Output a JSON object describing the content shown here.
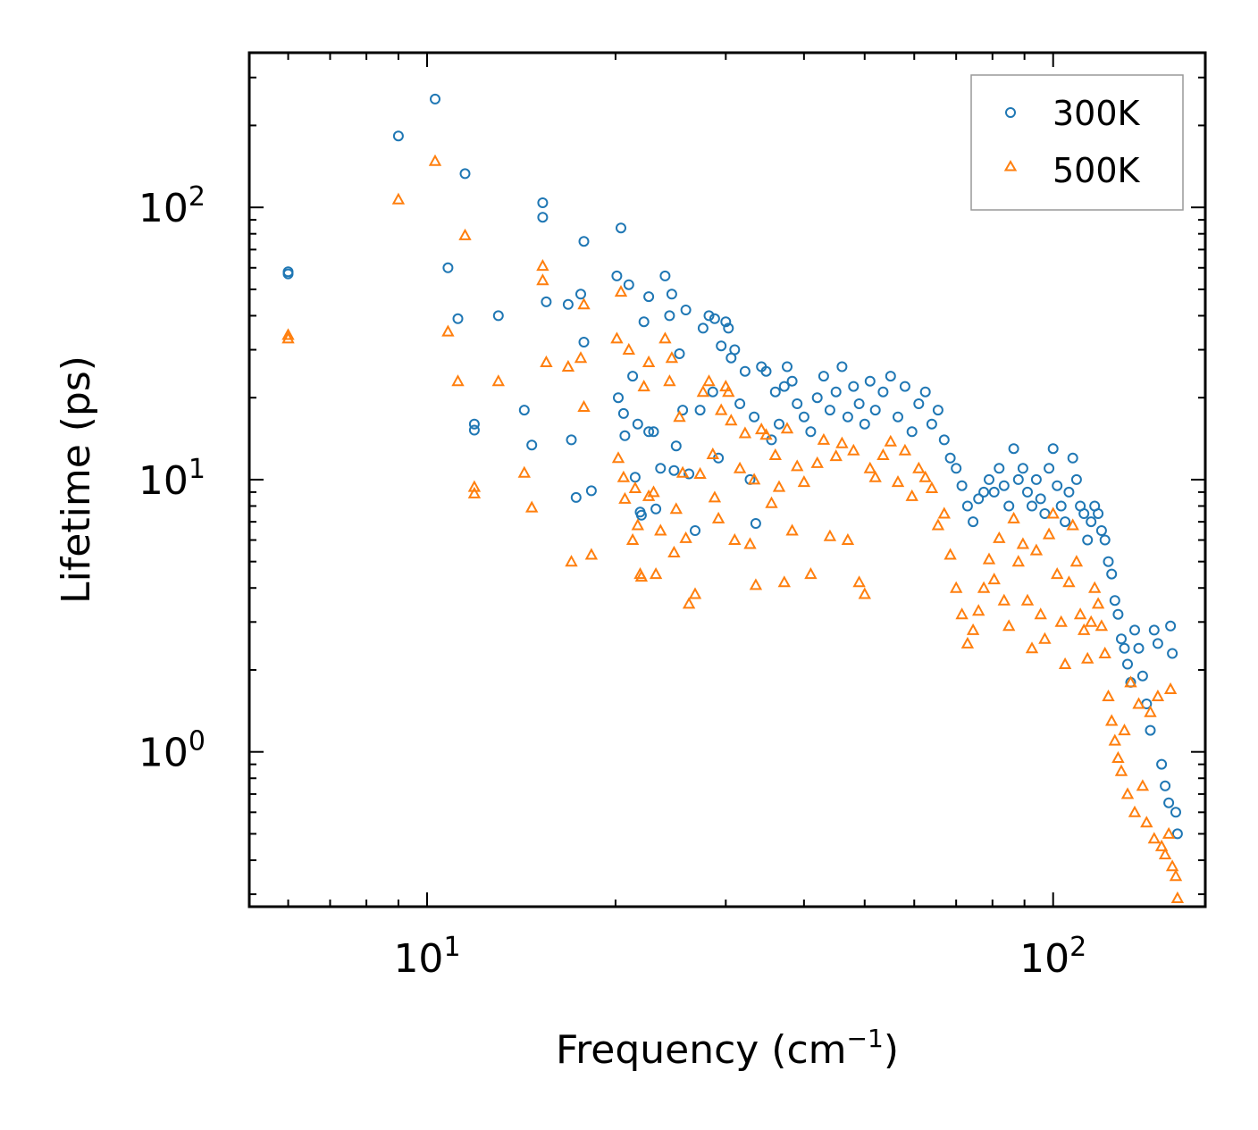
{
  "chart_data": {
    "type": "scatter",
    "xscale": "log",
    "yscale": "log",
    "xlim": [
      5.2,
      175
    ],
    "ylim": [
      0.27,
      370
    ],
    "xlabel": {
      "base": "Frequency (cm",
      "exponent": "−1",
      "suffix": ")"
    },
    "ylabel": "Lifetime (ps)",
    "xticks": [
      {
        "base": "10",
        "exp": "1",
        "value": 10
      },
      {
        "base": "10",
        "exp": "2",
        "value": 100
      }
    ],
    "yticks": [
      {
        "base": "10",
        "exp": "0",
        "value": 1
      },
      {
        "base": "10",
        "exp": "1",
        "value": 10
      },
      {
        "base": "10",
        "exp": "2",
        "value": 100
      }
    ],
    "grid": false,
    "legend_position": "upper right",
    "series": [
      {
        "name": "300K",
        "marker": "circle",
        "color": "#1f77b4",
        "points": [
          [
            6.0,
            58
          ],
          [
            6.0,
            57
          ],
          [
            9.0,
            183
          ],
          [
            10.3,
            250
          ],
          [
            10.8,
            60
          ],
          [
            11.2,
            39
          ],
          [
            11.5,
            133
          ],
          [
            11.9,
            16
          ],
          [
            11.9,
            15.2
          ],
          [
            13.0,
            40
          ],
          [
            14.3,
            18
          ],
          [
            14.7,
            13.4
          ],
          [
            15.3,
            104
          ],
          [
            15.3,
            92
          ],
          [
            15.5,
            45
          ],
          [
            16.8,
            44
          ],
          [
            17.0,
            14
          ],
          [
            17.3,
            8.6
          ],
          [
            17.6,
            48
          ],
          [
            17.8,
            75
          ],
          [
            17.8,
            32
          ],
          [
            18.3,
            9.1
          ],
          [
            20.1,
            56
          ],
          [
            20.2,
            20
          ],
          [
            20.4,
            84
          ],
          [
            20.6,
            17.5
          ],
          [
            20.7,
            14.5
          ],
          [
            21.0,
            52
          ],
          [
            21.3,
            24
          ],
          [
            21.5,
            10.2
          ],
          [
            21.7,
            16
          ],
          [
            21.9,
            7.6
          ],
          [
            22.0,
            7.4
          ],
          [
            22.2,
            38
          ],
          [
            22.6,
            47
          ],
          [
            22.6,
            15
          ],
          [
            23.0,
            15
          ],
          [
            23.2,
            7.8
          ],
          [
            23.6,
            11
          ],
          [
            24.0,
            56
          ],
          [
            24.4,
            40
          ],
          [
            24.6,
            48
          ],
          [
            24.8,
            10.8
          ],
          [
            25.0,
            13.3
          ],
          [
            25.3,
            29
          ],
          [
            25.6,
            18
          ],
          [
            25.9,
            42
          ],
          [
            26.2,
            10.5
          ],
          [
            26.8,
            6.5
          ],
          [
            27.3,
            18
          ],
          [
            27.6,
            36
          ],
          [
            28.2,
            40
          ],
          [
            28.6,
            21
          ],
          [
            28.8,
            39
          ],
          [
            29.2,
            12
          ],
          [
            29.5,
            31
          ],
          [
            30.0,
            38
          ],
          [
            30.3,
            36
          ],
          [
            30.6,
            28
          ],
          [
            31.0,
            30
          ],
          [
            31.6,
            19
          ],
          [
            32.2,
            25
          ],
          [
            32.8,
            10
          ],
          [
            33.3,
            17
          ],
          [
            33.5,
            6.9
          ],
          [
            34.2,
            26
          ],
          [
            34.8,
            25
          ],
          [
            35.5,
            14
          ],
          [
            36.0,
            21
          ],
          [
            36.5,
            16
          ],
          [
            37.2,
            22
          ],
          [
            37.6,
            26
          ],
          [
            38.3,
            23
          ],
          [
            39.0,
            19
          ],
          [
            40.0,
            17
          ],
          [
            41.0,
            15
          ],
          [
            42.0,
            20
          ],
          [
            43.0,
            24
          ],
          [
            44.0,
            18
          ],
          [
            45.0,
            21
          ],
          [
            46.0,
            26
          ],
          [
            47.0,
            17
          ],
          [
            48.0,
            22
          ],
          [
            49.0,
            19
          ],
          [
            50.0,
            16
          ],
          [
            51.0,
            23
          ],
          [
            52.0,
            18
          ],
          [
            53.5,
            21
          ],
          [
            55.0,
            24
          ],
          [
            56.5,
            17
          ],
          [
            58.0,
            22
          ],
          [
            59.5,
            15
          ],
          [
            61.0,
            19
          ],
          [
            62.5,
            21
          ],
          [
            64.0,
            16
          ],
          [
            65.5,
            18
          ],
          [
            67.0,
            14
          ],
          [
            68.5,
            12
          ],
          [
            70.0,
            11
          ],
          [
            71.5,
            9.5
          ],
          [
            73.0,
            8
          ],
          [
            74.5,
            7
          ],
          [
            76.0,
            8.5
          ],
          [
            77.5,
            9
          ],
          [
            79.0,
            10
          ],
          [
            80.5,
            9
          ],
          [
            82.0,
            11
          ],
          [
            83.5,
            9.5
          ],
          [
            85.0,
            8
          ],
          [
            86.5,
            13
          ],
          [
            88.0,
            10
          ],
          [
            89.5,
            11
          ],
          [
            91.0,
            9
          ],
          [
            92.5,
            8
          ],
          [
            94.0,
            10
          ],
          [
            95.5,
            8.5
          ],
          [
            97.0,
            7.5
          ],
          [
            98.5,
            11
          ],
          [
            100.0,
            13
          ],
          [
            101.5,
            9.5
          ],
          [
            103.0,
            8
          ],
          [
            104.5,
            7
          ],
          [
            106.0,
            9
          ],
          [
            107.5,
            12
          ],
          [
            109.0,
            10
          ],
          [
            110.5,
            8
          ],
          [
            112.0,
            7.5
          ],
          [
            113.5,
            6
          ],
          [
            115.0,
            7
          ],
          [
            116.5,
            8
          ],
          [
            118.0,
            7.5
          ],
          [
            119.5,
            6.5
          ],
          [
            121.0,
            6
          ],
          [
            122.5,
            5
          ],
          [
            124.0,
            4.5
          ],
          [
            125.5,
            3.6
          ],
          [
            127.0,
            3.2
          ],
          [
            128.5,
            2.6
          ],
          [
            130.0,
            2.4
          ],
          [
            131.5,
            2.1
          ],
          [
            133.0,
            1.8
          ],
          [
            135.0,
            2.8
          ],
          [
            137.0,
            2.4
          ],
          [
            139.0,
            1.9
          ],
          [
            141.0,
            1.5
          ],
          [
            143.0,
            1.2
          ],
          [
            145.0,
            2.8
          ],
          [
            147.0,
            2.5
          ],
          [
            149.0,
            0.9
          ],
          [
            151.0,
            0.75
          ],
          [
            153.0,
            0.65
          ],
          [
            154.0,
            2.9
          ],
          [
            155.0,
            2.3
          ],
          [
            157.0,
            0.6
          ],
          [
            158.0,
            0.5
          ]
        ]
      },
      {
        "name": "500K",
        "marker": "triangle",
        "color": "#ff7f0e",
        "points": [
          [
            6.0,
            34
          ],
          [
            6.0,
            33
          ],
          [
            9.0,
            107
          ],
          [
            10.3,
            148
          ],
          [
            10.8,
            35
          ],
          [
            11.2,
            23
          ],
          [
            11.5,
            79
          ],
          [
            11.9,
            9.4
          ],
          [
            11.9,
            8.9
          ],
          [
            13.0,
            23
          ],
          [
            14.3,
            10.6
          ],
          [
            14.7,
            7.9
          ],
          [
            15.3,
            61
          ],
          [
            15.3,
            54
          ],
          [
            15.5,
            27
          ],
          [
            16.8,
            26
          ],
          [
            17.0,
            5.0
          ],
          [
            17.6,
            28
          ],
          [
            17.8,
            44
          ],
          [
            17.8,
            18.5
          ],
          [
            18.3,
            5.3
          ],
          [
            20.1,
            33
          ],
          [
            20.2,
            12
          ],
          [
            20.4,
            49
          ],
          [
            20.6,
            10.2
          ],
          [
            20.7,
            8.5
          ],
          [
            21.0,
            30
          ],
          [
            21.3,
            6.0
          ],
          [
            21.5,
            9.3
          ],
          [
            21.7,
            6.8
          ],
          [
            21.9,
            4.5
          ],
          [
            22.0,
            4.4
          ],
          [
            22.2,
            22
          ],
          [
            22.6,
            27
          ],
          [
            22.6,
            8.7
          ],
          [
            23.0,
            9.0
          ],
          [
            23.2,
            4.5
          ],
          [
            23.6,
            6.5
          ],
          [
            24.0,
            33
          ],
          [
            24.4,
            23
          ],
          [
            24.6,
            28
          ],
          [
            24.8,
            5.4
          ],
          [
            25.0,
            7.8
          ],
          [
            25.3,
            17
          ],
          [
            25.6,
            10.6
          ],
          [
            25.9,
            6.1
          ],
          [
            26.2,
            3.5
          ],
          [
            26.8,
            3.8
          ],
          [
            27.3,
            10.5
          ],
          [
            27.6,
            21
          ],
          [
            28.2,
            23
          ],
          [
            28.6,
            12.4
          ],
          [
            28.8,
            8.6
          ],
          [
            29.2,
            7.2
          ],
          [
            29.5,
            18
          ],
          [
            30.0,
            22
          ],
          [
            30.3,
            21
          ],
          [
            30.6,
            16.5
          ],
          [
            31.0,
            6.0
          ],
          [
            31.6,
            11
          ],
          [
            32.2,
            14.8
          ],
          [
            32.8,
            5.8
          ],
          [
            33.3,
            10
          ],
          [
            33.5,
            4.1
          ],
          [
            34.2,
            15.3
          ],
          [
            34.8,
            14.6
          ],
          [
            35.5,
            8.2
          ],
          [
            36.0,
            12.3
          ],
          [
            36.5,
            9.4
          ],
          [
            37.2,
            4.2
          ],
          [
            37.6,
            15.4
          ],
          [
            38.3,
            6.5
          ],
          [
            39.0,
            11.2
          ],
          [
            40.0,
            9.8
          ],
          [
            41.0,
            4.5
          ],
          [
            42.0,
            11.5
          ],
          [
            43.0,
            14
          ],
          [
            44.0,
            6.2
          ],
          [
            45.0,
            12.2
          ],
          [
            46.0,
            13.6
          ],
          [
            47.0,
            6.0
          ],
          [
            48.0,
            12.8
          ],
          [
            49.0,
            4.2
          ],
          [
            50.0,
            3.8
          ],
          [
            51.0,
            11
          ],
          [
            52.0,
            10.2
          ],
          [
            53.5,
            12.3
          ],
          [
            55.0,
            13.8
          ],
          [
            56.5,
            9.8
          ],
          [
            58.0,
            12.8
          ],
          [
            59.5,
            8.7
          ],
          [
            61.0,
            11
          ],
          [
            62.5,
            10.2
          ],
          [
            64.0,
            9.3
          ],
          [
            65.5,
            6.8
          ],
          [
            67.0,
            7.5
          ],
          [
            68.5,
            5.3
          ],
          [
            70.0,
            4.0
          ],
          [
            71.5,
            3.2
          ],
          [
            73.0,
            2.5
          ],
          [
            74.5,
            2.8
          ],
          [
            76.0,
            3.3
          ],
          [
            77.5,
            4.0
          ],
          [
            79.0,
            5.1
          ],
          [
            80.5,
            4.3
          ],
          [
            82.0,
            6.1
          ],
          [
            83.5,
            3.6
          ],
          [
            85.0,
            2.9
          ],
          [
            86.5,
            7.2
          ],
          [
            88.0,
            5.0
          ],
          [
            89.5,
            5.8
          ],
          [
            91.0,
            3.6
          ],
          [
            92.5,
            2.4
          ],
          [
            94.0,
            5.5
          ],
          [
            95.5,
            3.2
          ],
          [
            97.0,
            2.6
          ],
          [
            98.5,
            6.3
          ],
          [
            100.0,
            7.5
          ],
          [
            101.5,
            4.5
          ],
          [
            103.0,
            3.0
          ],
          [
            104.5,
            2.1
          ],
          [
            106.0,
            4.2
          ],
          [
            107.5,
            6.8
          ],
          [
            109.0,
            5.0
          ],
          [
            110.5,
            3.2
          ],
          [
            112.0,
            2.8
          ],
          [
            113.5,
            2.2
          ],
          [
            115.0,
            3.0
          ],
          [
            116.5,
            4.0
          ],
          [
            118.0,
            3.5
          ],
          [
            119.5,
            2.9
          ],
          [
            121.0,
            2.3
          ],
          [
            122.5,
            1.6
          ],
          [
            124.0,
            1.3
          ],
          [
            125.5,
            1.1
          ],
          [
            127.0,
            0.95
          ],
          [
            128.5,
            0.85
          ],
          [
            130.0,
            1.2
          ],
          [
            131.5,
            0.7
          ],
          [
            133.0,
            1.8
          ],
          [
            135.0,
            0.6
          ],
          [
            137.0,
            1.5
          ],
          [
            139.0,
            0.75
          ],
          [
            141.0,
            0.55
          ],
          [
            143.0,
            1.4
          ],
          [
            145.0,
            0.48
          ],
          [
            147.0,
            1.6
          ],
          [
            149.0,
            0.45
          ],
          [
            151.0,
            0.42
          ],
          [
            153.0,
            0.5
          ],
          [
            154.0,
            1.7
          ],
          [
            155.0,
            0.38
          ],
          [
            157.0,
            0.35
          ],
          [
            158.0,
            0.29
          ]
        ]
      }
    ]
  }
}
